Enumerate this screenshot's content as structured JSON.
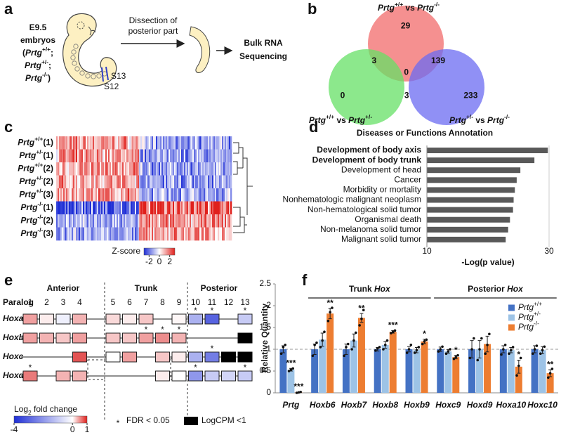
{
  "panel_labels": [
    "a",
    "b",
    "c",
    "d",
    "e",
    "f"
  ],
  "panel_a": {
    "embryo_lines": [
      [
        "E9.5"
      ],
      [
        "embryos"
      ],
      [
        "(",
        {
          "it": "Prtg"
        },
        {
          "sup": "+/+"
        },
        ";"
      ],
      [
        {
          "it": "Prtg"
        },
        {
          "sup": "+/-"
        },
        ";"
      ],
      [
        {
          "it": "Prtg"
        },
        {
          "sup": "-/-"
        },
        ")"
      ]
    ],
    "step_label": [
      "Dissection of",
      "posterior part"
    ],
    "result": [
      "Bulk RNA",
      "Sequencing"
    ],
    "somites": [
      "S13",
      "S12"
    ]
  },
  "panel_b": {
    "sets": [
      {
        "label": [
          {
            "it": "Prtg"
          },
          {
            "sup": "+/+"
          },
          " vs ",
          {
            "it": "Prtg"
          },
          {
            "sup": "-/-"
          }
        ],
        "color": "#f26b6b"
      },
      {
        "label": [
          {
            "it": "Prtg"
          },
          {
            "sup": "+/+"
          },
          " vs ",
          {
            "it": "Prtg"
          },
          {
            "sup": "+/-"
          }
        ],
        "color": "#66e066"
      },
      {
        "label": [
          {
            "it": "Prtg"
          },
          {
            "sup": "+/-"
          },
          " vs ",
          {
            "it": "Prtg"
          },
          {
            "sup": "-/-"
          }
        ],
        "color": "#6b6bf2"
      }
    ],
    "regions": [
      {
        "sets": [
          0
        ],
        "count": 29
      },
      {
        "sets": [
          0,
          1
        ],
        "count": 3
      },
      {
        "sets": [
          0,
          1,
          2
        ],
        "count": 0
      },
      {
        "sets": [
          0,
          2
        ],
        "count": 139
      },
      {
        "sets": [
          1
        ],
        "count": 0
      },
      {
        "sets": [
          1,
          2
        ],
        "count": 3
      },
      {
        "sets": [
          2
        ],
        "count": 233
      }
    ]
  },
  "panel_c": {
    "rows": [
      [
        {
          "it": "Prtg"
        },
        {
          "sup": "+/+"
        },
        "(1)"
      ],
      [
        {
          "it": "Prtg"
        },
        {
          "sup": "+/-"
        },
        "(1)"
      ],
      [
        {
          "it": "Prtg"
        },
        {
          "sup": "+/+"
        },
        "(2)"
      ],
      [
        {
          "it": "Prtg"
        },
        {
          "sup": "+/-"
        },
        "(2)"
      ],
      [
        {
          "it": "Prtg"
        },
        {
          "sup": "+/-"
        },
        "(3)"
      ],
      [
        {
          "it": "Prtg"
        },
        {
          "sup": "-/-"
        },
        "(1)"
      ],
      [
        {
          "it": "Prtg"
        },
        {
          "sup": "-/-"
        },
        "(2)"
      ],
      [
        {
          "it": "Prtg"
        },
        {
          "sup": "-/-"
        },
        "(3)"
      ]
    ],
    "colorbar": {
      "label": "Z-score",
      "ticks": [
        -2,
        0,
        2
      ],
      "lim": [
        -3,
        3
      ]
    }
  },
  "panel_e": {
    "regions": [
      "Anterior",
      "Trunk",
      "Posterior"
    ],
    "paralog_label": "Paralog",
    "paralogs": [
      1,
      2,
      3,
      4,
      5,
      6,
      7,
      8,
      9,
      10,
      11,
      12,
      13
    ],
    "rows": [
      {
        "name": "Hoxa",
        "genes": [
          {
            "lfc": 0.5
          },
          {
            "lfc": 0.1
          },
          {
            "lfc": -0.3
          },
          {
            "lfc": 0.4
          },
          {
            "lfc": 0.2
          },
          {
            "lfc": 0.1
          },
          {
            "lfc": 0.3
          },
          null,
          {
            "lfc": 0.05
          },
          {
            "lfc": -1.5,
            "fdr": true
          },
          {
            "lfc": -3,
            "fdr": true
          },
          null,
          {
            "lfc": -1,
            "fdr": true
          }
        ]
      },
      {
        "name": "Hoxb",
        "genes": [
          {
            "lfc": 0.5
          },
          {
            "lfc": 0.4
          },
          {
            "lfc": 0.3
          },
          {
            "lfc": 0.5
          },
          {
            "lfc": 0.3
          },
          {
            "lfc": 0.3
          },
          {
            "lfc": 0.5,
            "fdr": true
          },
          {
            "lfc": 0.6,
            "fdr": true
          },
          {
            "lfc": 0.4,
            "fdr": true
          },
          null,
          null,
          null,
          {
            "low_cpm": true
          }
        ]
      },
      {
        "name": "Hoxc",
        "genes": [
          null,
          null,
          null,
          {
            "lfc": 0.9
          },
          {
            "lfc": 0
          },
          {
            "lfc": 0.5
          },
          null,
          {
            "lfc": 0.3
          },
          {
            "lfc": 0.1
          },
          {
            "lfc": -1.5
          },
          {
            "lfc": -2.5,
            "fdr": true
          },
          {
            "low_cpm": true
          },
          {
            "low_cpm": true
          }
        ]
      },
      {
        "name": "Hoxd",
        "genes": [
          {
            "lfc": 0.7,
            "fdr": true
          },
          null,
          {
            "lfc": 0.4
          },
          {
            "lfc": 0.4
          },
          null,
          null,
          null,
          {
            "lfc": 0.1
          },
          {
            "lfc": 0
          },
          {
            "lfc": -2,
            "fdr": true
          },
          {
            "lfc": -1
          },
          {
            "lfc": -0.8
          },
          {
            "lfc": -1,
            "fdr": true
          }
        ]
      }
    ],
    "legend": {
      "title": [
        "Log",
        {
          "sub": "2"
        },
        " fold change"
      ],
      "lim": [
        -4,
        1
      ],
      "ticks": [
        -4,
        0,
        1
      ],
      "fdr_symbol": "*",
      "fdr_label": "FDR < 0.05",
      "low_label": "LogCPM <1"
    }
  },
  "chart_data": [
    {
      "type": "barh",
      "title": "Diseases or Functions Annotation",
      "categories": [
        "Development of body axis",
        "Development of body trunk",
        "Development of head",
        "Cancer",
        "Morbidity or mortality",
        "Nonhematologic malignant neoplasm",
        "Non-hematological solid tumor",
        "Organismal death",
        "Non-melanoma solid tumor",
        "Malignant solid tumor"
      ],
      "values": [
        29.8,
        27.6,
        25.3,
        24.7,
        24.4,
        24.2,
        24.1,
        23.6,
        23.3,
        22.9
      ],
      "bold": [
        true,
        true,
        false,
        false,
        false,
        false,
        false,
        false,
        false,
        false
      ],
      "color": "#595959",
      "xlabel": "-Log(p value)",
      "xlim": [
        10,
        30
      ],
      "xticks": [
        10,
        30
      ],
      "grid": true
    },
    {
      "type": "bar",
      "ylabel": "Relative Quantity",
      "categories": [
        "Prtg",
        "Hoxb6",
        "Hoxb7",
        "Hoxb8",
        "Hoxb9",
        "Hoxc9",
        "Hoxd9",
        "Hoxa10",
        "Hoxc10"
      ],
      "groups": [
        {
          "label": [
            "Trunk ",
            {
              "it": "Hox"
            }
          ],
          "start": 1,
          "end": 4
        },
        {
          "label": [
            "Posterior ",
            {
              "it": "Hox"
            }
          ],
          "start": 5,
          "end": 8
        }
      ],
      "series": [
        {
          "name": [
            {
              "it": "Prtg"
            },
            {
              "sup": "+/+"
            }
          ],
          "color": "#4472c4",
          "values": [
            1,
            1,
            1,
            1,
            1,
            1,
            1,
            1,
            1
          ],
          "errors": [
            0.08,
            0.12,
            0.12,
            0.04,
            0.06,
            0.05,
            0.2,
            0.08,
            0.08
          ],
          "points": [
            [
              0.9,
              1.05,
              1.1
            ],
            [
              0.85,
              1.1,
              1.15
            ],
            [
              0.85,
              1.05,
              1.12
            ],
            [
              0.97,
              1.02,
              1.05
            ],
            [
              0.92,
              1.0,
              1.1
            ],
            [
              0.95,
              1.0,
              1.06
            ],
            [
              0.8,
              1.0,
              1.25
            ],
            [
              0.88,
              1.0,
              1.1
            ],
            [
              0.9,
              1.0,
              1.08
            ]
          ],
          "significance": [
            null,
            null,
            null,
            null,
            null,
            null,
            null,
            null,
            null
          ]
        },
        {
          "name": [
            {
              "it": "Prtg"
            },
            {
              "sup": "+/-"
            }
          ],
          "color": "#9dc3e6",
          "values": [
            0.53,
            1.22,
            1.2,
            1.1,
            0.98,
            0.95,
            1.0,
            0.98,
            0.98
          ],
          "errors": [
            0.03,
            0.15,
            0.15,
            0.08,
            0.06,
            0.04,
            0.2,
            0.06,
            0.08
          ],
          "points": [
            [
              0.5,
              0.53,
              0.56
            ],
            [
              1.05,
              1.2,
              1.4
            ],
            [
              1.0,
              1.2,
              1.38
            ],
            [
              1.0,
              1.1,
              1.2
            ],
            [
              0.92,
              0.98,
              1.05
            ],
            [
              0.9,
              0.95,
              1.0
            ],
            [
              0.75,
              1.0,
              1.25
            ],
            [
              0.9,
              0.98,
              1.05
            ],
            [
              0.9,
              0.98,
              1.06
            ]
          ],
          "significance": [
            "***",
            null,
            null,
            null,
            null,
            null,
            null,
            null,
            null
          ]
        },
        {
          "name": [
            {
              "it": "Prtg"
            },
            {
              "sup": "-/-"
            }
          ],
          "color": "#ed7d31",
          "values": [
            0.01,
            1.82,
            1.72,
            1.4,
            1.18,
            0.82,
            1.12,
            0.6,
            0.45
          ],
          "errors": [
            0.005,
            0.12,
            0.1,
            0.03,
            0.05,
            0.04,
            0.18,
            0.15,
            0.08
          ],
          "points": [
            [
              0.0,
              0.01,
              0.02
            ],
            [
              1.65,
              1.85,
              1.95
            ],
            [
              1.55,
              1.7,
              1.9
            ],
            [
              1.37,
              1.4,
              1.43
            ],
            [
              1.12,
              1.18,
              1.22
            ],
            [
              0.78,
              0.82,
              0.86
            ],
            [
              0.9,
              1.1,
              1.35
            ],
            [
              0.4,
              0.62,
              0.8
            ],
            [
              0.35,
              0.45,
              0.55
            ]
          ],
          "significance": [
            "***",
            "**",
            "**",
            "***",
            "*",
            "*",
            null,
            "*",
            "**"
          ]
        }
      ],
      "ylim": [
        0,
        2.5
      ],
      "yticks": [
        0,
        0.5,
        1,
        1.5,
        2,
        2.5
      ],
      "reference_line": 1,
      "legend": "upper right"
    }
  ]
}
